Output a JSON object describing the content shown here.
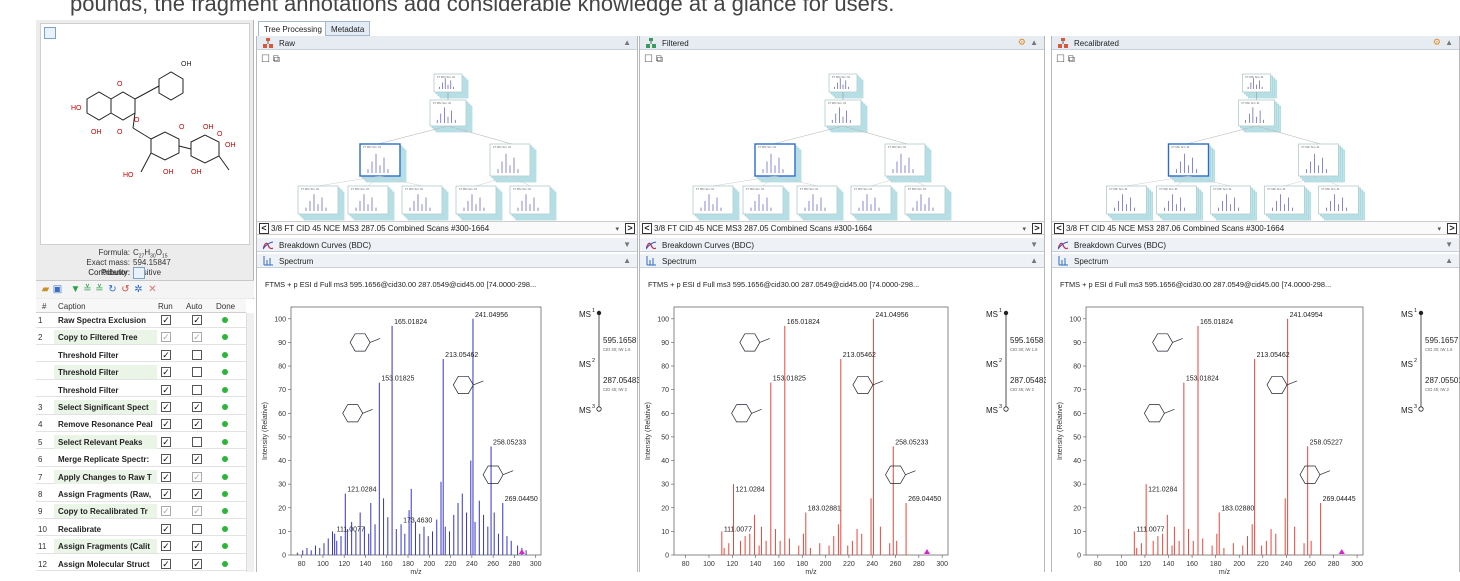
{
  "top_crop_text": "pounds, the fragment annotations add considerable knowledge at a glance for users.",
  "sample_panel": {
    "formula_label": "Formula:",
    "formula_main": "C",
    "formula_sub1": "27",
    "formula_h": "H",
    "formula_sub2": "30",
    "formula_o": "O",
    "formula_sub3": "15",
    "exact_mass_label": "Exact mass:",
    "exact_mass": "594.15847",
    "polarity_label": "Polarity:",
    "polarity": "Positive",
    "contributor_label": "Contributor:"
  },
  "workflow": {
    "headers": {
      "num": "#",
      "caption": "Caption",
      "run": "Run",
      "auto": "Auto",
      "done": "Done"
    },
    "rows": [
      {
        "num": "1",
        "caption": "Raw Spectra Exclusion",
        "run": "✓",
        "auto": "✓",
        "run_dis": false,
        "auto_dis": false
      },
      {
        "num": "2",
        "caption": "Copy to Filtered Tree",
        "run": "✓",
        "auto": "✓",
        "run_dis": true,
        "auto_dis": true
      },
      {
        "num": "",
        "caption": "Threshold Filter",
        "run": "✓",
        "auto": "",
        "run_dis": false,
        "auto_dis": false
      },
      {
        "num": "",
        "caption": "Threshold Filter",
        "run": "✓",
        "auto": "",
        "run_dis": false,
        "auto_dis": false
      },
      {
        "num": "",
        "caption": "Threshold Filter",
        "run": "✓",
        "auto": "",
        "run_dis": false,
        "auto_dis": false
      },
      {
        "num": "3",
        "caption": "Select Significant Spect",
        "run": "✓",
        "auto": "✓",
        "run_dis": false,
        "auto_dis": false
      },
      {
        "num": "4",
        "caption": "Remove Resonance Peal",
        "run": "✓",
        "auto": "✓",
        "run_dis": false,
        "auto_dis": false
      },
      {
        "num": "5",
        "caption": "Select Relevant Peaks",
        "run": "✓",
        "auto": "",
        "run_dis": false,
        "auto_dis": false
      },
      {
        "num": "6",
        "caption": "Merge Replicate Spectr:",
        "run": "✓",
        "auto": "✓",
        "run_dis": false,
        "auto_dis": false
      },
      {
        "num": "7",
        "caption": "Apply Changes to Raw T",
        "run": "✓",
        "auto": "✓",
        "run_dis": false,
        "auto_dis": true
      },
      {
        "num": "8",
        "caption": "Assign Fragments (Raw,",
        "run": "✓",
        "auto": "✓",
        "run_dis": false,
        "auto_dis": false
      },
      {
        "num": "9",
        "caption": "Copy to Recalibrated Tr",
        "run": "✓",
        "auto": "✓",
        "run_dis": true,
        "auto_dis": true
      },
      {
        "num": "10",
        "caption": "Recalibrate",
        "run": "✓",
        "auto": "",
        "run_dis": false,
        "auto_dis": false
      },
      {
        "num": "11",
        "caption": "Assign Fragments (Calit",
        "run": "✓",
        "auto": "✓",
        "run_dis": false,
        "auto_dis": false
      },
      {
        "num": "12",
        "caption": "Assign Molecular Struct",
        "run": "✓",
        "auto": "✓",
        "run_dis": false,
        "auto_dis": false
      }
    ]
  },
  "tabs": [
    "Tree Processing",
    "Metadata"
  ],
  "tree_node_label": "FT MS² Scn: #1",
  "nav_text": "3/8 FT CID 45 NCE MS3 287.05 Combined Scans  #300-1664",
  "nav_text_recal": "3/8 FT CID 45 NCE MS3 287.06 Combined Scans  #300-1664",
  "bdc_label": "Breakdown Curves (BDC)",
  "spectrum_label": "Spectrum",
  "spectrum_title": "FTMS + p ESI d Full ms3 595.1656@cid30.00 287.0549@cid45.00 [74.0000-298...",
  "y_label": "Intensity (Relative)",
  "x_label": "m/z",
  "ms_tree_raw": {
    "ms1": "MS",
    "ms1_sup": "1",
    "mz1": "595.1658",
    "sub1": "CID 30; IW 1.6",
    "ms2": "MS",
    "ms2_sup": "2",
    "mz2": "287.05483",
    "sub2": "CID 45; IW 2",
    "ms3": "MS",
    "ms3_sup": "3"
  },
  "ms_tree_filt": {
    "ms1": "MS",
    "ms1_sup": "1",
    "mz1": "595.1658",
    "sub1": "CID 30; IW 1.6",
    "ms2": "MS",
    "ms2_sup": "2",
    "mz2": "287.05483",
    "sub2": "CID 45; IW 2",
    "ms3": "MS",
    "ms3_sup": "3"
  },
  "ms_tree_recal": {
    "ms1": "MS",
    "ms1_sup": "1",
    "mz1": "595.1657",
    "sub1": "CID 30; IW 1.6",
    "ms2": "MS",
    "ms2_sup": "2",
    "mz2": "287.05501",
    "sub2": "CID 45; IW 2",
    "ms3": "MS",
    "ms3_sup": "3"
  },
  "colors": {
    "raw": "#3535c8",
    "filtered": "#e8463c",
    "recal": "#e8463c",
    "accent": "#2e6bc7"
  },
  "chart_data": [
    {
      "type": "bar",
      "title": "Raw",
      "xlabel": "m/z",
      "ylabel": "Intensity (Relative)",
      "xlim": [
        70,
        305
      ],
      "ylim": [
        0,
        105
      ],
      "xticks": [
        80,
        100,
        120,
        140,
        160,
        180,
        200,
        220,
        240,
        260,
        280,
        300
      ],
      "yticks": [
        0,
        10,
        20,
        30,
        40,
        50,
        60,
        70,
        80,
        90,
        100
      ],
      "peaks": [
        [
          76,
          1
        ],
        [
          81,
          2
        ],
        [
          85,
          3
        ],
        [
          89,
          2
        ],
        [
          93,
          4
        ],
        [
          97,
          3
        ],
        [
          101,
          5
        ],
        [
          105,
          7
        ],
        [
          109,
          10
        ],
        [
          111.0077,
          9
        ],
        [
          113,
          6
        ],
        [
          117,
          8
        ],
        [
          121.0284,
          26
        ],
        [
          123,
          11
        ],
        [
          127,
          14
        ],
        [
          131,
          10
        ],
        [
          135,
          18
        ],
        [
          139,
          12
        ],
        [
          143,
          9
        ],
        [
          145,
          22
        ],
        [
          149,
          13
        ],
        [
          153.01825,
          73
        ],
        [
          157,
          24
        ],
        [
          161,
          16
        ],
        [
          165.01824,
          97
        ],
        [
          169,
          11
        ],
        [
          173.463,
          13
        ],
        [
          177,
          9
        ],
        [
          181,
          19
        ],
        [
          183,
          28
        ],
        [
          187,
          14
        ],
        [
          191,
          9
        ],
        [
          195,
          12
        ],
        [
          199,
          8
        ],
        [
          203,
          10
        ],
        [
          207,
          15
        ],
        [
          211,
          31
        ],
        [
          213.05462,
          83
        ],
        [
          215,
          12
        ],
        [
          219,
          10
        ],
        [
          223,
          17
        ],
        [
          227,
          22
        ],
        [
          231,
          26
        ],
        [
          235,
          18
        ],
        [
          239,
          40
        ],
        [
          241.04956,
          100
        ],
        [
          243,
          14
        ],
        [
          247,
          23
        ],
        [
          251,
          17
        ],
        [
          255,
          12
        ],
        [
          258.05233,
          46
        ],
        [
          261,
          18
        ],
        [
          265,
          9
        ],
        [
          269.0445,
          22
        ],
        [
          273,
          8
        ],
        [
          277,
          6
        ],
        [
          283,
          4
        ],
        [
          287,
          3
        ],
        [
          291,
          2
        ]
      ],
      "labels": [
        {
          "x": 165.01824,
          "y": 97,
          "text": "165.01824"
        },
        {
          "x": 241.04956,
          "y": 100,
          "text": "241.04956"
        },
        {
          "x": 213.05462,
          "y": 83,
          "text": "213.05462"
        },
        {
          "x": 153.01825,
          "y": 73,
          "text": "153.01825"
        },
        {
          "x": 258.05233,
          "y": 46,
          "text": "258.05233"
        },
        {
          "x": 121.0284,
          "y": 26,
          "text": "121.0284"
        },
        {
          "x": 173.463,
          "y": 13,
          "text": "173.4630"
        },
        {
          "x": 269.0445,
          "y": 22,
          "text": "269.04450"
        },
        {
          "x": 111.0077,
          "y": 9,
          "text": "111.0077"
        }
      ]
    },
    {
      "type": "bar",
      "title": "Filtered",
      "xlabel": "m/z",
      "ylabel": "Intensity (Relative)",
      "xlim": [
        70,
        305
      ],
      "ylim": [
        0,
        105
      ],
      "xticks": [
        80,
        100,
        120,
        140,
        160,
        180,
        200,
        220,
        240,
        260,
        280,
        300
      ],
      "yticks": [
        0,
        10,
        20,
        30,
        40,
        50,
        60,
        70,
        80,
        90,
        100
      ],
      "peaks": [
        [
          111.0077,
          10
        ],
        [
          113,
          3
        ],
        [
          117,
          5
        ],
        [
          121.0284,
          30
        ],
        [
          127,
          6
        ],
        [
          131,
          8
        ],
        [
          135,
          9
        ],
        [
          139,
          17
        ],
        [
          143,
          4
        ],
        [
          145,
          12
        ],
        [
          149,
          6
        ],
        [
          153.01825,
          73
        ],
        [
          157,
          11
        ],
        [
          161,
          6
        ],
        [
          165.01824,
          97
        ],
        [
          169,
          7
        ],
        [
          177,
          4
        ],
        [
          181,
          9
        ],
        [
          183.02881,
          18
        ],
        [
          187,
          3
        ],
        [
          195,
          5
        ],
        [
          203,
          4
        ],
        [
          207,
          8
        ],
        [
          211,
          13
        ],
        [
          213.05462,
          83
        ],
        [
          219,
          4
        ],
        [
          223,
          6
        ],
        [
          227,
          11
        ],
        [
          231,
          9
        ],
        [
          239,
          24
        ],
        [
          241.04956,
          100
        ],
        [
          247,
          12
        ],
        [
          255,
          5
        ],
        [
          258.05233,
          46
        ],
        [
          261,
          6
        ],
        [
          269.0445,
          22
        ]
      ],
      "labels": [
        {
          "x": 165.01824,
          "y": 97,
          "text": "165.01824"
        },
        {
          "x": 241.04956,
          "y": 100,
          "text": "241.04956"
        },
        {
          "x": 213.05462,
          "y": 83,
          "text": "213.05462"
        },
        {
          "x": 153.01825,
          "y": 73,
          "text": "153.01825"
        },
        {
          "x": 258.05233,
          "y": 46,
          "text": "258.05233"
        },
        {
          "x": 121.0284,
          "y": 26,
          "text": "121.0284"
        },
        {
          "x": 183.02881,
          "y": 18,
          "text": "183.02881"
        },
        {
          "x": 269.0445,
          "y": 22,
          "text": "269.04450"
        },
        {
          "x": 111.0077,
          "y": 9,
          "text": "111.0077"
        }
      ]
    },
    {
      "type": "bar",
      "title": "Recalibrated",
      "xlabel": "m/z",
      "ylabel": "Intensity (Relative)",
      "xlim": [
        70,
        305
      ],
      "ylim": [
        0,
        105
      ],
      "xticks": [
        80,
        100,
        120,
        140,
        160,
        180,
        200,
        220,
        240,
        260,
        280,
        300
      ],
      "yticks": [
        0,
        10,
        20,
        30,
        40,
        50,
        60,
        70,
        80,
        90,
        100
      ],
      "peaks": [
        [
          111.0077,
          10
        ],
        [
          113,
          3
        ],
        [
          117,
          5
        ],
        [
          121.0284,
          30
        ],
        [
          127,
          6
        ],
        [
          131,
          8
        ],
        [
          135,
          9
        ],
        [
          139,
          17
        ],
        [
          143,
          4
        ],
        [
          145,
          12
        ],
        [
          149,
          6
        ],
        [
          153.01824,
          73
        ],
        [
          157,
          11
        ],
        [
          161,
          6
        ],
        [
          165.01824,
          97
        ],
        [
          169,
          7
        ],
        [
          177,
          4
        ],
        [
          181,
          9
        ],
        [
          183.0288,
          18
        ],
        [
          187,
          3
        ],
        [
          195,
          5
        ],
        [
          203,
          4
        ],
        [
          207,
          8
        ],
        [
          211,
          13
        ],
        [
          213.05462,
          83
        ],
        [
          219,
          4
        ],
        [
          223,
          6
        ],
        [
          227,
          11
        ],
        [
          231,
          9
        ],
        [
          239,
          24
        ],
        [
          241.04954,
          100
        ],
        [
          247,
          12
        ],
        [
          255,
          5
        ],
        [
          258.05227,
          46
        ],
        [
          261,
          6
        ],
        [
          269.04445,
          22
        ]
      ],
      "labels": [
        {
          "x": 165.01824,
          "y": 97,
          "text": "165.01824"
        },
        {
          "x": 241.04954,
          "y": 100,
          "text": "241.04954"
        },
        {
          "x": 213.05462,
          "y": 83,
          "text": "213.05462"
        },
        {
          "x": 153.01824,
          "y": 73,
          "text": "153.01824"
        },
        {
          "x": 258.05227,
          "y": 46,
          "text": "258.05227"
        },
        {
          "x": 121.0284,
          "y": 26,
          "text": "121.0284"
        },
        {
          "x": 183.0288,
          "y": 18,
          "text": "183.02880"
        },
        {
          "x": 269.04445,
          "y": 22,
          "text": "269.04445"
        },
        {
          "x": 111.0077,
          "y": 9,
          "text": "111.0077"
        }
      ]
    }
  ],
  "panel_titles": {
    "raw": "Raw",
    "filtered": "Filtered",
    "recal": "Recalibrated"
  }
}
